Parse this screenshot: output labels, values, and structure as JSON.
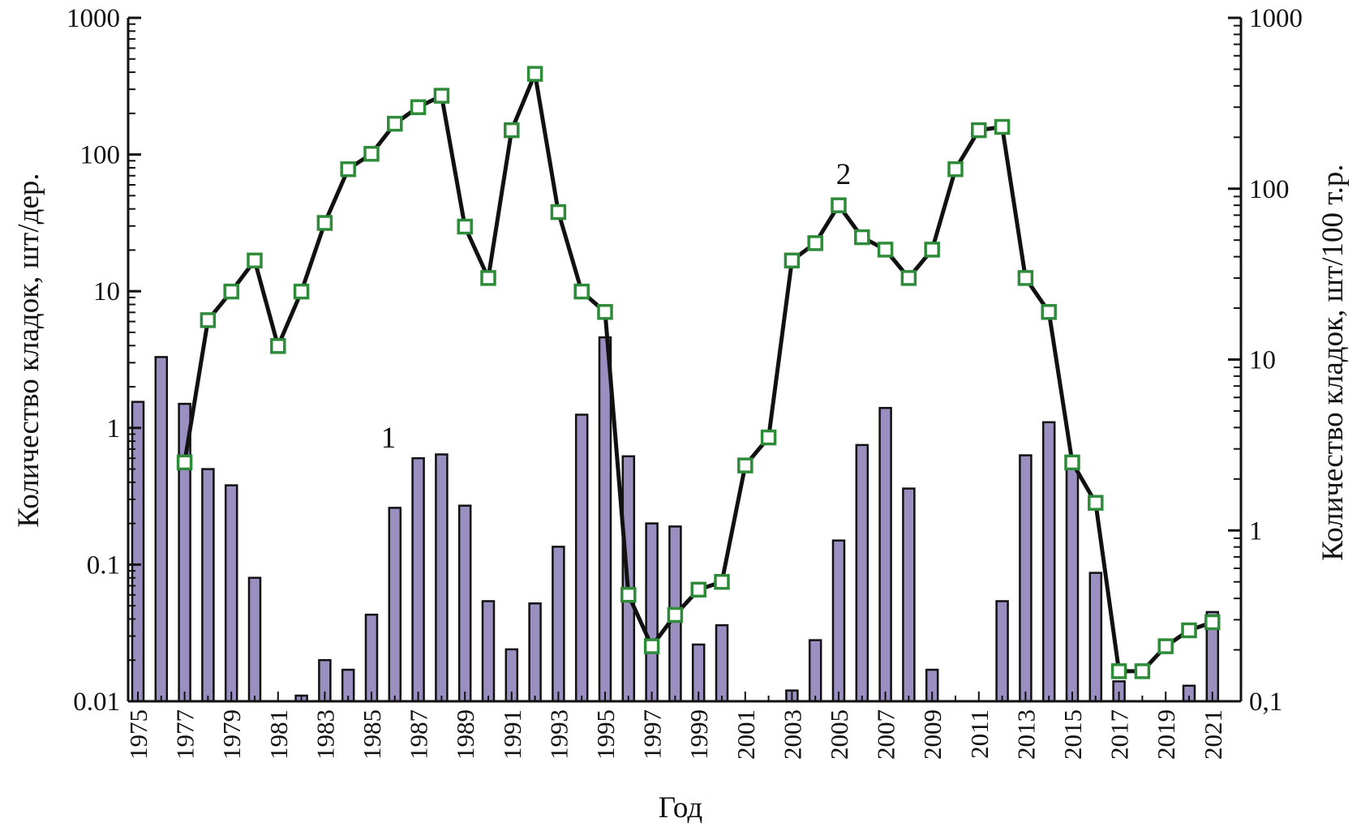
{
  "chart_data": {
    "type": "bar+line",
    "title": "",
    "xlabel": "Год",
    "ylabel_left": "Количество кладок, шт/дер.",
    "ylabel_right": "Количество кладок, шт/100 т.р.",
    "y_left_scale": "log",
    "y_right_scale": "log",
    "y_left_lim": [
      0.01,
      1000
    ],
    "y_right_lim": [
      0.1,
      1000
    ],
    "y_left_ticks": [
      "1000",
      "100",
      "10",
      "1",
      "0.1",
      "0.01"
    ],
    "y_right_ticks": [
      "1000",
      "100",
      "10",
      "1",
      "0,1"
    ],
    "x_tick_labels": [
      "1975",
      "1977",
      "1979",
      "1981",
      "1983",
      "1985",
      "1987",
      "1989",
      "1991",
      "1993",
      "1995",
      "1997",
      "1999",
      "2001",
      "2003",
      "2005",
      "2007",
      "2009",
      "2011",
      "2013",
      "2015",
      "2017",
      "2019",
      "2021"
    ],
    "grid": false,
    "legend": "none",
    "series": [
      {
        "label": "1",
        "type": "bar",
        "axis": "left",
        "color": "#9b8ec0",
        "points": [
          [
            1975,
            1.55
          ],
          [
            1976,
            3.3
          ],
          [
            1977,
            1.5
          ],
          [
            1978,
            0.5
          ],
          [
            1979,
            0.38
          ],
          [
            1980,
            0.08
          ],
          [
            1982,
            0.011
          ],
          [
            1983,
            0.02
          ],
          [
            1984,
            0.017
          ],
          [
            1985,
            0.043
          ],
          [
            1986,
            0.26
          ],
          [
            1987,
            0.6
          ],
          [
            1988,
            0.64
          ],
          [
            1989,
            0.27
          ],
          [
            1990,
            0.054
          ],
          [
            1991,
            0.024
          ],
          [
            1992,
            0.052
          ],
          [
            1993,
            0.135
          ],
          [
            1994,
            1.25
          ],
          [
            1995,
            4.6
          ],
          [
            1996,
            0.62
          ],
          [
            1997,
            0.2
          ],
          [
            1998,
            0.19
          ],
          [
            1999,
            0.026
          ],
          [
            2000,
            0.036
          ],
          [
            2003,
            0.012
          ],
          [
            2004,
            0.028
          ],
          [
            2005,
            0.15
          ],
          [
            2006,
            0.75
          ],
          [
            2007,
            1.4
          ],
          [
            2008,
            0.36
          ],
          [
            2009,
            0.017
          ],
          [
            2012,
            0.054
          ],
          [
            2013,
            0.63
          ],
          [
            2014,
            1.1
          ],
          [
            2015,
            0.55
          ],
          [
            2016,
            0.087
          ],
          [
            2017,
            0.014
          ],
          [
            2020,
            0.013
          ],
          [
            2021,
            0.045
          ]
        ]
      },
      {
        "label": "2",
        "type": "line",
        "axis": "right",
        "marker": "square",
        "marker_color": "#2e8b3a",
        "line_color": "#111111",
        "points": [
          [
            1977,
            2.5
          ],
          [
            1978,
            17
          ],
          [
            1979,
            25
          ],
          [
            1980,
            38
          ],
          [
            1981,
            12
          ],
          [
            1982,
            25
          ],
          [
            1983,
            63
          ],
          [
            1984,
            130
          ],
          [
            1985,
            160
          ],
          [
            1986,
            240
          ],
          [
            1987,
            300
          ],
          [
            1988,
            350
          ],
          [
            1989,
            60
          ],
          [
            1990,
            30
          ],
          [
            1991,
            220
          ],
          [
            1992,
            470
          ],
          [
            1993,
            73
          ],
          [
            1994,
            25
          ],
          [
            1995,
            19
          ],
          [
            1996,
            0.42
          ],
          [
            1997,
            0.21
          ],
          [
            1998,
            0.32
          ],
          [
            1999,
            0.45
          ],
          [
            2000,
            0.5
          ],
          [
            2001,
            2.4
          ],
          [
            2002,
            3.5
          ],
          [
            2003,
            38
          ],
          [
            2004,
            48
          ],
          [
            2005,
            80
          ],
          [
            2006,
            52
          ],
          [
            2007,
            44
          ],
          [
            2008,
            30
          ],
          [
            2009,
            44
          ],
          [
            2010,
            130
          ],
          [
            2011,
            220
          ],
          [
            2012,
            230
          ],
          [
            2013,
            30
          ],
          [
            2014,
            19
          ],
          [
            2015,
            2.5
          ],
          [
            2016,
            1.45
          ],
          [
            2017,
            0.15
          ],
          [
            2018,
            0.15
          ],
          [
            2019,
            0.21
          ],
          [
            2020,
            0.26
          ],
          [
            2021,
            0.29
          ]
        ]
      }
    ]
  }
}
